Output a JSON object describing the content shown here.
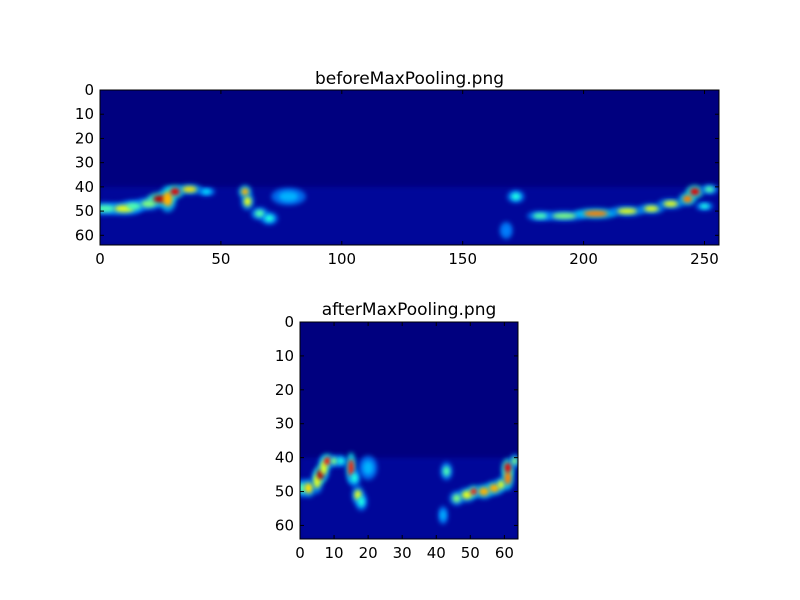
{
  "chart_data": [
    {
      "type": "heatmap",
      "title": "beforeMaxPooling.png",
      "colormap": "jet",
      "background_color": "#00007f",
      "xlim": [
        0,
        256
      ],
      "ylim": [
        64,
        0
      ],
      "xticks": [
        "0",
        "50",
        "100",
        "150",
        "200",
        "250"
      ],
      "xtick_values": [
        0,
        50,
        100,
        150,
        200,
        250
      ],
      "yticks": [
        "0",
        "10",
        "20",
        "30",
        "40",
        "50",
        "60"
      ],
      "ytick_values": [
        0,
        10,
        20,
        30,
        40,
        50,
        60
      ],
      "faint_band_rows": [
        40,
        64
      ],
      "hotspots": [
        [
          2,
          49,
          0.45,
          4,
          1.5
        ],
        [
          10,
          49,
          0.6,
          4,
          1.5
        ],
        [
          14,
          48,
          0.45,
          3,
          1.5
        ],
        [
          20,
          47,
          0.5,
          3,
          1.5
        ],
        [
          25,
          45,
          0.95,
          3,
          1.5
        ],
        [
          28,
          45,
          0.7,
          2,
          3
        ],
        [
          31,
          42,
          0.9,
          2,
          1.5
        ],
        [
          37,
          41,
          0.65,
          3,
          1.2
        ],
        [
          44,
          42,
          0.35,
          2,
          1
        ],
        [
          60,
          42,
          0.7,
          1.5,
          1.5
        ],
        [
          61,
          46,
          0.6,
          1.5,
          2
        ],
        [
          66,
          51,
          0.45,
          2,
          1.5
        ],
        [
          70,
          53,
          0.4,
          2,
          1.5
        ],
        [
          78,
          44,
          0.3,
          4,
          2
        ],
        [
          172,
          44,
          0.4,
          2,
          1.5
        ],
        [
          168,
          58,
          0.25,
          1.5,
          2
        ],
        [
          182,
          52,
          0.45,
          3,
          1.2
        ],
        [
          192,
          52,
          0.5,
          5,
          1.2
        ],
        [
          205,
          51,
          0.75,
          5,
          1.2
        ],
        [
          218,
          50,
          0.6,
          4,
          1.2
        ],
        [
          228,
          49,
          0.6,
          3,
          1.2
        ],
        [
          236,
          47,
          0.6,
          3,
          1.2
        ],
        [
          243,
          45,
          0.75,
          2,
          1.5
        ],
        [
          246,
          42,
          0.9,
          2,
          1.5
        ],
        [
          252,
          41,
          0.45,
          2,
          1.2
        ],
        [
          250,
          48,
          0.4,
          2,
          1
        ]
      ]
    },
    {
      "type": "heatmap",
      "title": "afterMaxPooling.png",
      "colormap": "jet",
      "background_color": "#00007f",
      "xlim": [
        0,
        64
      ],
      "ylim": [
        64,
        0
      ],
      "xticks": [
        "0",
        "10",
        "20",
        "30",
        "40",
        "50",
        "60"
      ],
      "xtick_values": [
        0,
        10,
        20,
        30,
        40,
        50,
        60
      ],
      "yticks": [
        "0",
        "10",
        "20",
        "30",
        "40",
        "50",
        "60"
      ],
      "ytick_values": [
        0,
        10,
        20,
        30,
        40,
        50,
        60
      ],
      "faint_band_rows": [
        40,
        64
      ],
      "hotspots": [
        [
          0.5,
          49,
          0.45,
          1,
          1.5
        ],
        [
          2.5,
          49,
          0.65,
          1.2,
          1.5
        ],
        [
          5,
          47,
          0.6,
          1,
          2
        ],
        [
          6,
          45,
          0.95,
          1,
          1.5
        ],
        [
          7,
          43,
          0.6,
          1,
          2
        ],
        [
          8,
          41,
          0.85,
          1,
          1.2
        ],
        [
          10,
          41,
          0.5,
          1,
          1
        ],
        [
          12,
          41,
          0.4,
          1,
          1
        ],
        [
          15,
          43,
          0.85,
          0.8,
          2.5
        ],
        [
          16,
          46,
          0.4,
          1,
          1.5
        ],
        [
          17,
          51,
          0.6,
          1,
          1.5
        ],
        [
          18,
          53,
          0.4,
          1,
          1.5
        ],
        [
          20,
          43,
          0.3,
          1.5,
          2
        ],
        [
          43,
          44,
          0.45,
          1,
          1.5
        ],
        [
          42,
          57,
          0.3,
          0.8,
          1.5
        ],
        [
          46,
          52,
          0.5,
          1.2,
          1.2
        ],
        [
          49,
          51,
          0.6,
          1.5,
          1.2
        ],
        [
          51,
          50,
          0.85,
          1,
          1
        ],
        [
          54,
          50,
          0.7,
          1.5,
          1.2
        ],
        [
          57,
          49,
          0.7,
          1.5,
          1.2
        ],
        [
          59,
          48,
          0.6,
          1,
          1.2
        ],
        [
          61,
          46,
          0.75,
          1,
          2
        ],
        [
          61,
          43,
          0.9,
          1,
          1.5
        ],
        [
          63,
          41,
          0.5,
          0.8,
          1.2
        ]
      ]
    }
  ]
}
